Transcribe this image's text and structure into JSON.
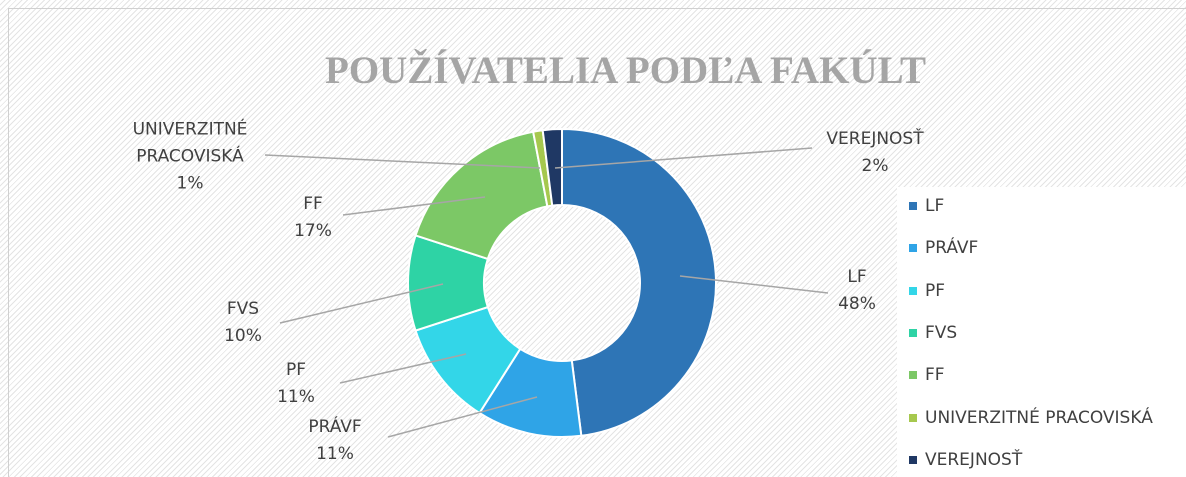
{
  "chart_data": {
    "type": "donut",
    "title": "POUŽÍVATELIA PODĽA FAKÚLT",
    "categories": [
      "LF",
      "PRÁVF",
      "PF",
      "FVS",
      "FF",
      "UNIVERZITNÉ PRACOVISKÁ",
      "VEREJNOSŤ"
    ],
    "values": [
      48,
      11,
      11,
      10,
      17,
      1,
      2
    ],
    "value_labels": [
      "48%",
      "11%",
      "11%",
      "10%",
      "17%",
      "1%",
      "2%"
    ],
    "colors": [
      "#2e75b6",
      "#2fa4e7",
      "#33d6e8",
      "#2ed3a5",
      "#7cc866",
      "#a6c84e",
      "#1f3864"
    ],
    "legend": "right"
  }
}
